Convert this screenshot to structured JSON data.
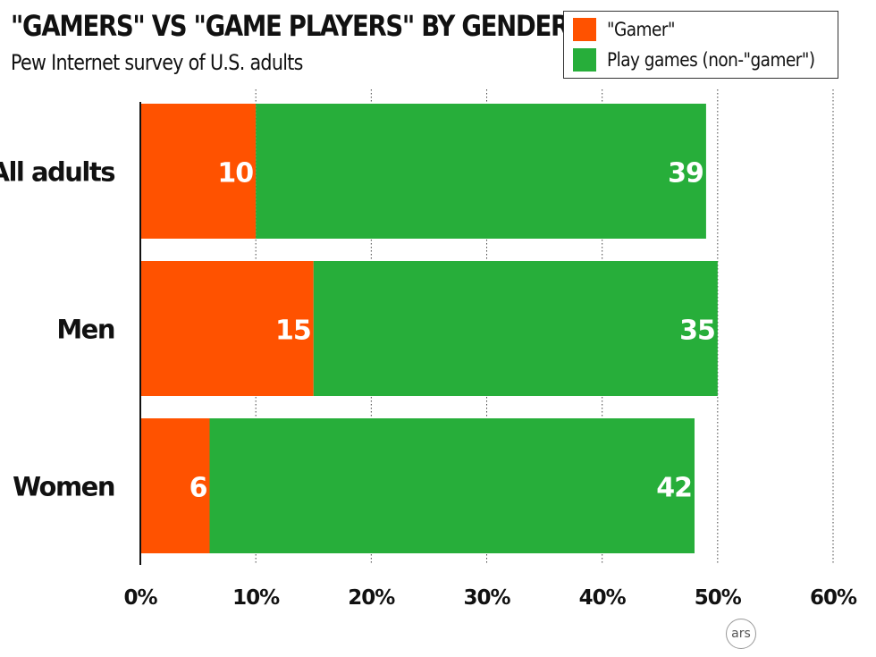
{
  "chart_data": {
    "type": "bar",
    "orientation": "horizontal",
    "stacked": true,
    "title": "\"GAMERS\" VS \"GAME PLAYERS\" BY GENDER",
    "subtitle": "Pew Internet survey of U.S. adults",
    "categories": [
      "All adults",
      "Men",
      "Women"
    ],
    "series": [
      {
        "name": "\"Gamer\"",
        "color": "#ff5200",
        "values": [
          10,
          15,
          6
        ]
      },
      {
        "name": "Play games (non-\"gamer\")",
        "color": "#27ae3a",
        "values": [
          39,
          35,
          42
        ]
      }
    ],
    "xlim": [
      0,
      60
    ],
    "x_ticks": [
      0,
      10,
      20,
      30,
      40,
      50,
      60
    ],
    "x_tick_labels": [
      "0%",
      "10%",
      "20%",
      "30%",
      "40%",
      "50%",
      "60%"
    ],
    "grid": "vertical dotted",
    "legend_position": "top-right",
    "xlabel": "",
    "ylabel": ""
  },
  "badge": {
    "text": "ars"
  }
}
